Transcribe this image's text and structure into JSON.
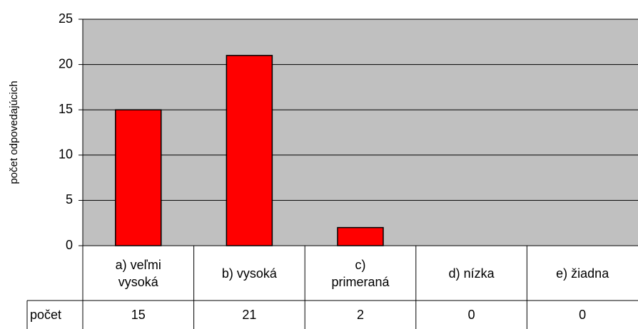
{
  "chart_data": {
    "type": "bar",
    "y_label": "počet odpovedajúcich",
    "categories": [
      "a) veľmi vysoká",
      "b) vysoká",
      "c) primeraná",
      "d) nízka",
      "e) žiadna"
    ],
    "series": [
      {
        "name": "počet",
        "color": "#ff0000",
        "values": [
          15,
          21,
          2,
          0,
          0
        ]
      }
    ],
    "ylim": [
      0,
      25
    ],
    "yticks": [
      0,
      5,
      10,
      15,
      20,
      25
    ],
    "grid": true,
    "plot_background": "#c0c0c0"
  }
}
